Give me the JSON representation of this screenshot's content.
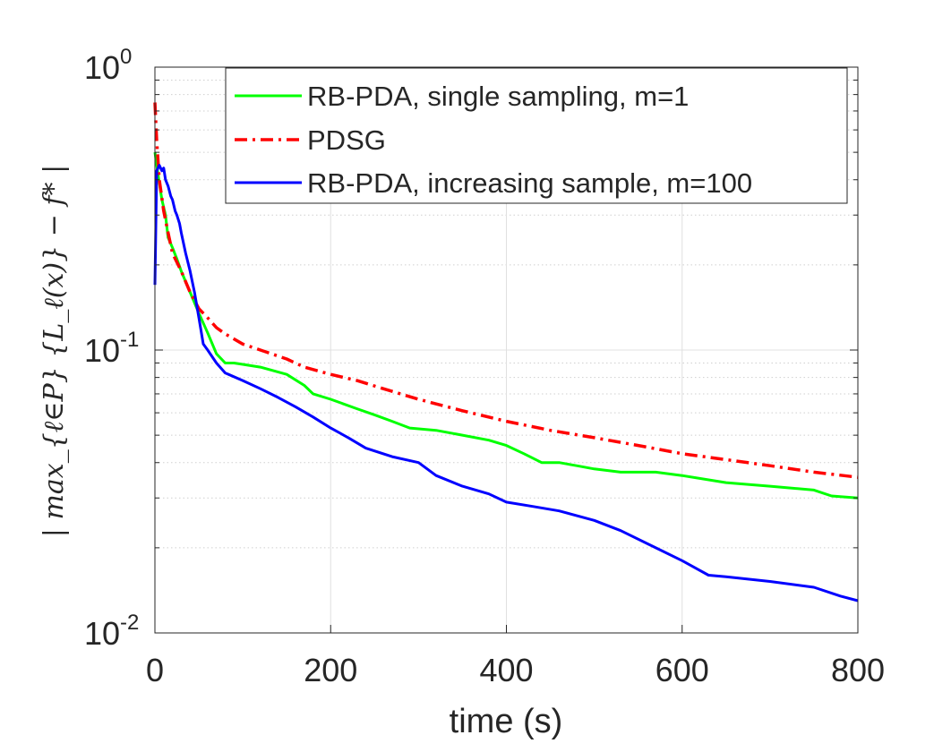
{
  "chart_data": {
    "type": "line",
    "title": "",
    "xlabel": "time (s)",
    "ylabel": "| max_{ℓ∈P} {L_ℓ(x)} − f* |",
    "xlim": [
      0,
      800
    ],
    "ylim": [
      0.01,
      1
    ],
    "yscale": "log",
    "grid": true,
    "legend_location": "top-right",
    "x_ticks": [
      0,
      200,
      400,
      600,
      800
    ],
    "x_tick_labels": [
      "0",
      "200",
      "400",
      "600",
      "800"
    ],
    "y_ticks": [
      {
        "value": 0.01,
        "base": "10",
        "exp": "-2"
      },
      {
        "value": 0.1,
        "base": "10",
        "exp": "-1"
      },
      {
        "value": 1,
        "base": "10",
        "exp": "0"
      }
    ],
    "series": [
      {
        "name": "RB-PDA, single sampling, m=1",
        "color": "#00ff00",
        "style": "solid",
        "x": [
          0,
          2,
          5,
          8,
          12,
          15,
          20,
          25,
          30,
          40,
          50,
          60,
          70,
          80,
          90,
          100,
          120,
          150,
          170,
          180,
          200,
          230,
          250,
          270,
          290,
          320,
          350,
          380,
          400,
          420,
          440,
          460,
          480,
          500,
          530,
          570,
          600,
          650,
          700,
          750,
          770,
          800
        ],
        "y": [
          0.5,
          0.45,
          0.39,
          0.34,
          0.3,
          0.25,
          0.23,
          0.21,
          0.19,
          0.16,
          0.135,
          0.115,
          0.097,
          0.09,
          0.09,
          0.089,
          0.087,
          0.082,
          0.075,
          0.07,
          0.067,
          0.062,
          0.059,
          0.056,
          0.053,
          0.052,
          0.05,
          0.048,
          0.046,
          0.043,
          0.04,
          0.04,
          0.039,
          0.038,
          0.037,
          0.037,
          0.036,
          0.034,
          0.033,
          0.032,
          0.0305,
          0.03
        ]
      },
      {
        "name": "PDSG",
        "color": "#ff0000",
        "style": "dash-dot",
        "x": [
          0,
          2,
          5,
          10,
          15,
          20,
          30,
          40,
          50,
          60,
          70,
          80,
          100,
          120,
          150,
          170,
          200,
          230,
          260,
          300,
          350,
          400,
          450,
          500,
          550,
          600,
          650,
          700,
          750,
          800
        ],
        "y": [
          0.75,
          0.55,
          0.4,
          0.31,
          0.26,
          0.22,
          0.19,
          0.16,
          0.14,
          0.13,
          0.12,
          0.114,
          0.105,
          0.1,
          0.093,
          0.087,
          0.082,
          0.078,
          0.073,
          0.067,
          0.061,
          0.056,
          0.052,
          0.049,
          0.046,
          0.043,
          0.041,
          0.039,
          0.037,
          0.0355
        ]
      },
      {
        "name": "RB-PDA, increasing sample, m=100",
        "color": "#0000ff",
        "style": "solid",
        "x": [
          0,
          2,
          5,
          8,
          10,
          12,
          15,
          18,
          20,
          23,
          25,
          28,
          30,
          35,
          40,
          45,
          50,
          55,
          60,
          70,
          80,
          100,
          120,
          140,
          160,
          180,
          200,
          220,
          240,
          270,
          300,
          320,
          350,
          380,
          400,
          430,
          460,
          500,
          530,
          570,
          600,
          630,
          650,
          700,
          750,
          780,
          800
        ],
        "y": [
          0.17,
          0.43,
          0.45,
          0.43,
          0.44,
          0.4,
          0.38,
          0.35,
          0.34,
          0.31,
          0.3,
          0.28,
          0.26,
          0.22,
          0.19,
          0.16,
          0.13,
          0.105,
          0.1,
          0.09,
          0.083,
          0.078,
          0.073,
          0.068,
          0.063,
          0.058,
          0.053,
          0.049,
          0.045,
          0.042,
          0.04,
          0.036,
          0.033,
          0.031,
          0.029,
          0.028,
          0.027,
          0.025,
          0.023,
          0.02,
          0.018,
          0.016,
          0.0158,
          0.0152,
          0.0145,
          0.0135,
          0.013
        ]
      }
    ]
  }
}
